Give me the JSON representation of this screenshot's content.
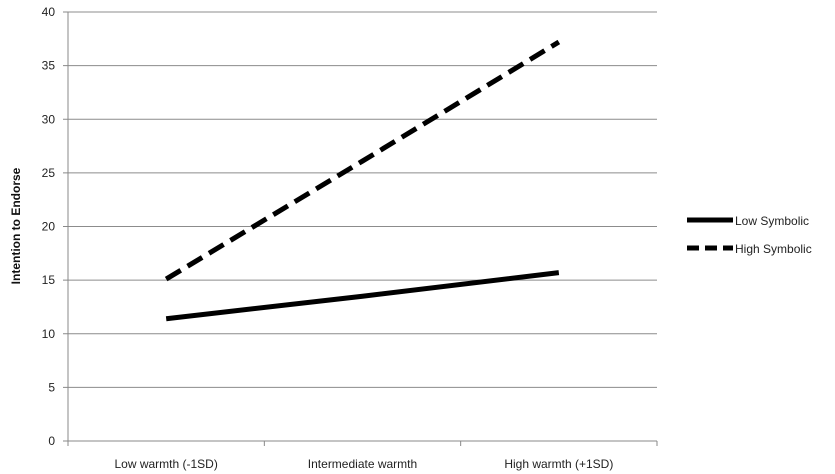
{
  "chart_data": {
    "type": "line",
    "categories": [
      "Low warmth (-1SD)",
      "Intermediate warmth",
      "High warmth (+1SD)"
    ],
    "ylabel": "Intention to Endorse",
    "xlabel": "",
    "ylim": [
      0,
      40
    ],
    "yticks": [
      0,
      5,
      10,
      15,
      20,
      25,
      30,
      35,
      40
    ],
    "grid": true,
    "legend_position": "right",
    "series": [
      {
        "name": "Low Symbolic",
        "values": [
          11.4,
          13.5,
          15.7
        ],
        "style": "solid",
        "color": "#000000"
      },
      {
        "name": "High Symbolic",
        "values": [
          15.1,
          26.1,
          37.2
        ],
        "style": "dashed",
        "color": "#000000"
      }
    ]
  }
}
